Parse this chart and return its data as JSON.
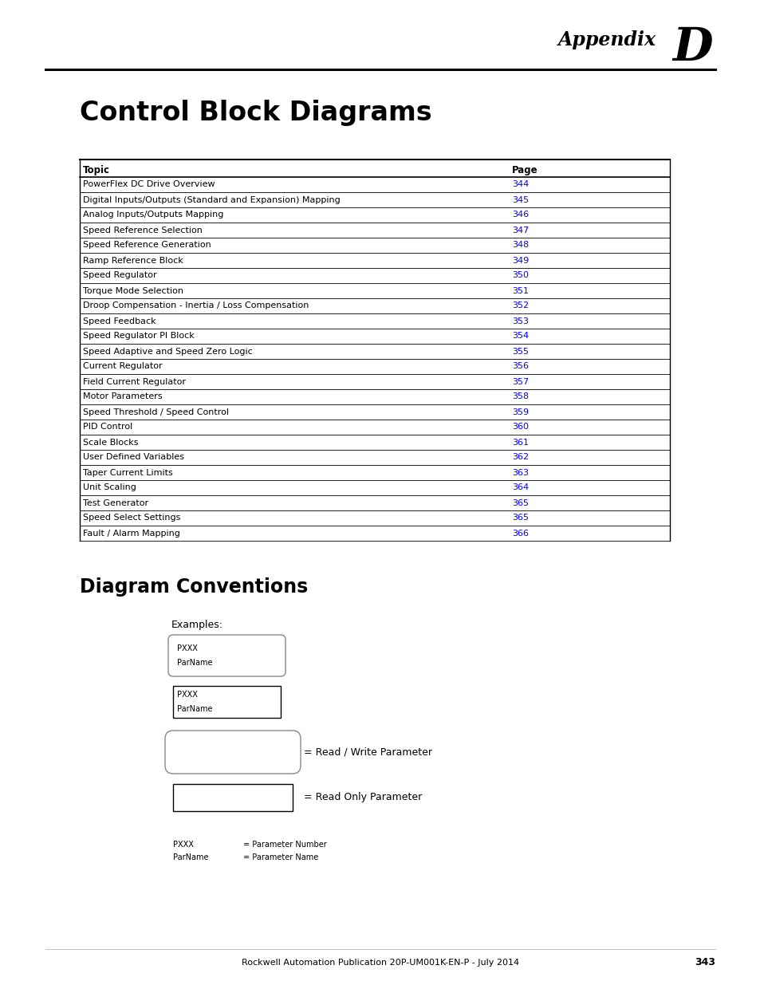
{
  "page_bg": "#ffffff",
  "appendix_label": "Appendix ",
  "appendix_letter": "D",
  "title": "Control Block Diagrams",
  "table_header": [
    "Topic",
    "Page"
  ],
  "table_rows": [
    [
      "PowerFlex DC Drive Overview",
      "344"
    ],
    [
      "Digital Inputs/Outputs (Standard and Expansion) Mapping",
      "345"
    ],
    [
      "Analog Inputs/Outputs Mapping",
      "346"
    ],
    [
      "Speed Reference Selection",
      "347"
    ],
    [
      "Speed Reference Generation",
      "348"
    ],
    [
      "Ramp Reference Block",
      "349"
    ],
    [
      "Speed Regulator",
      "350"
    ],
    [
      "Torque Mode Selection",
      "351"
    ],
    [
      "Droop Compensation - Inertia / Loss Compensation",
      "352"
    ],
    [
      "Speed Feedback",
      "353"
    ],
    [
      "Speed Regulator PI Block",
      "354"
    ],
    [
      "Speed Adaptive and Speed Zero Logic",
      "355"
    ],
    [
      "Current Regulator",
      "356"
    ],
    [
      "Field Current Regulator",
      "357"
    ],
    [
      "Motor Parameters",
      "358"
    ],
    [
      "Speed Threshold / Speed Control",
      "359"
    ],
    [
      "PID Control",
      "360"
    ],
    [
      "Scale Blocks",
      "361"
    ],
    [
      "User Defined Variables",
      "362"
    ],
    [
      "Taper Current Limits",
      "363"
    ],
    [
      "Unit Scaling",
      "364"
    ],
    [
      "Test Generator",
      "365"
    ],
    [
      "Speed Select Settings",
      "365"
    ],
    [
      "Fault / Alarm Mapping",
      "366"
    ]
  ],
  "link_color": "#0000EE",
  "section2_title": "Diagram Conventions",
  "examples_label": "Examples:",
  "box1_label1": "PXXX",
  "box1_label2": "ParName",
  "box2_label1": "PXXX",
  "box2_label2": "ParName",
  "rw_label": "= Read / Write Parameter",
  "ro_label": "= Read Only Parameter",
  "legend_pxxx": "PXXX",
  "legend_parname": "ParName",
  "legend_pxxx_desc": "= Parameter Number",
  "legend_parname_desc": "= Parameter Name",
  "footer_text": "Rockwell Automation Publication 20P-UM001K-EN-P - July 2014",
  "footer_page": "343"
}
